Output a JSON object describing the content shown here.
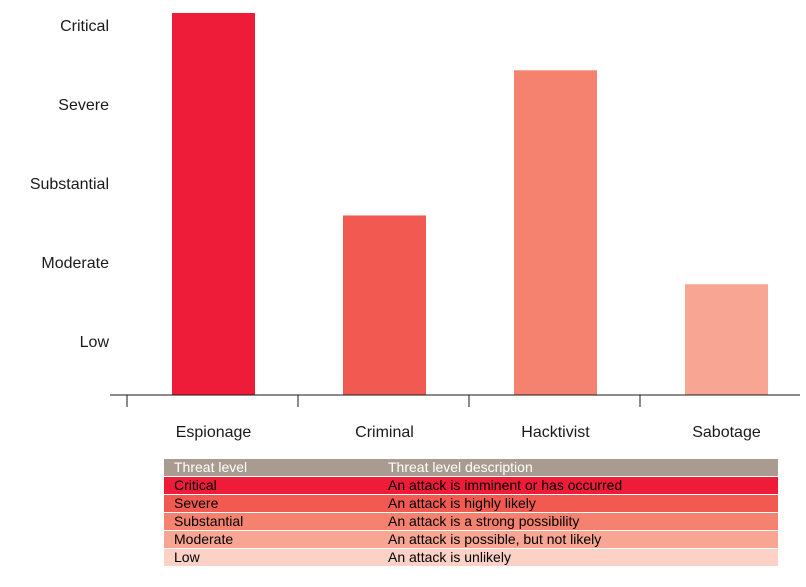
{
  "chart_data": {
    "type": "bar",
    "title": "",
    "xlabel": "",
    "ylabel": "",
    "categories": [
      "Espionage",
      "Criminal",
      "Hacktivist",
      "Sabotage"
    ],
    "values": [
      5,
      2.35,
      4.25,
      1.45
    ],
    "value_meaning": "threat level (1 = Low … 5 = Critical)",
    "ylim": [
      0,
      5
    ],
    "y_ticks": [
      {
        "value": 1,
        "label": "Low"
      },
      {
        "value": 2,
        "label": "Moderate"
      },
      {
        "value": 3,
        "label": "Substantial"
      },
      {
        "value": 4,
        "label": "Severe"
      },
      {
        "value": 5,
        "label": "Critical"
      }
    ],
    "bar_colors": [
      "#ee1c39",
      "#f25a51",
      "#f5826f",
      "#f8a693"
    ],
    "grid": false,
    "legend": "none"
  },
  "threat_table": {
    "headers": [
      "Threat level",
      "Threat level description"
    ],
    "header_color": "#a99b8f",
    "rows": [
      {
        "level": "Critical",
        "description": "An attack is imminent or has occurred",
        "color": "#ee1c39"
      },
      {
        "level": "Severe",
        "description": "An attack is highly likely",
        "color": "#f25a51"
      },
      {
        "level": "Substantial",
        "description": "An attack is a strong possibility",
        "color": "#f5826f"
      },
      {
        "level": "Moderate",
        "description": "An attack is possible, but not likely",
        "color": "#f8a693"
      },
      {
        "level": "Low",
        "description": "An attack is unlikely",
        "color": "#fcd2c6"
      }
    ]
  }
}
